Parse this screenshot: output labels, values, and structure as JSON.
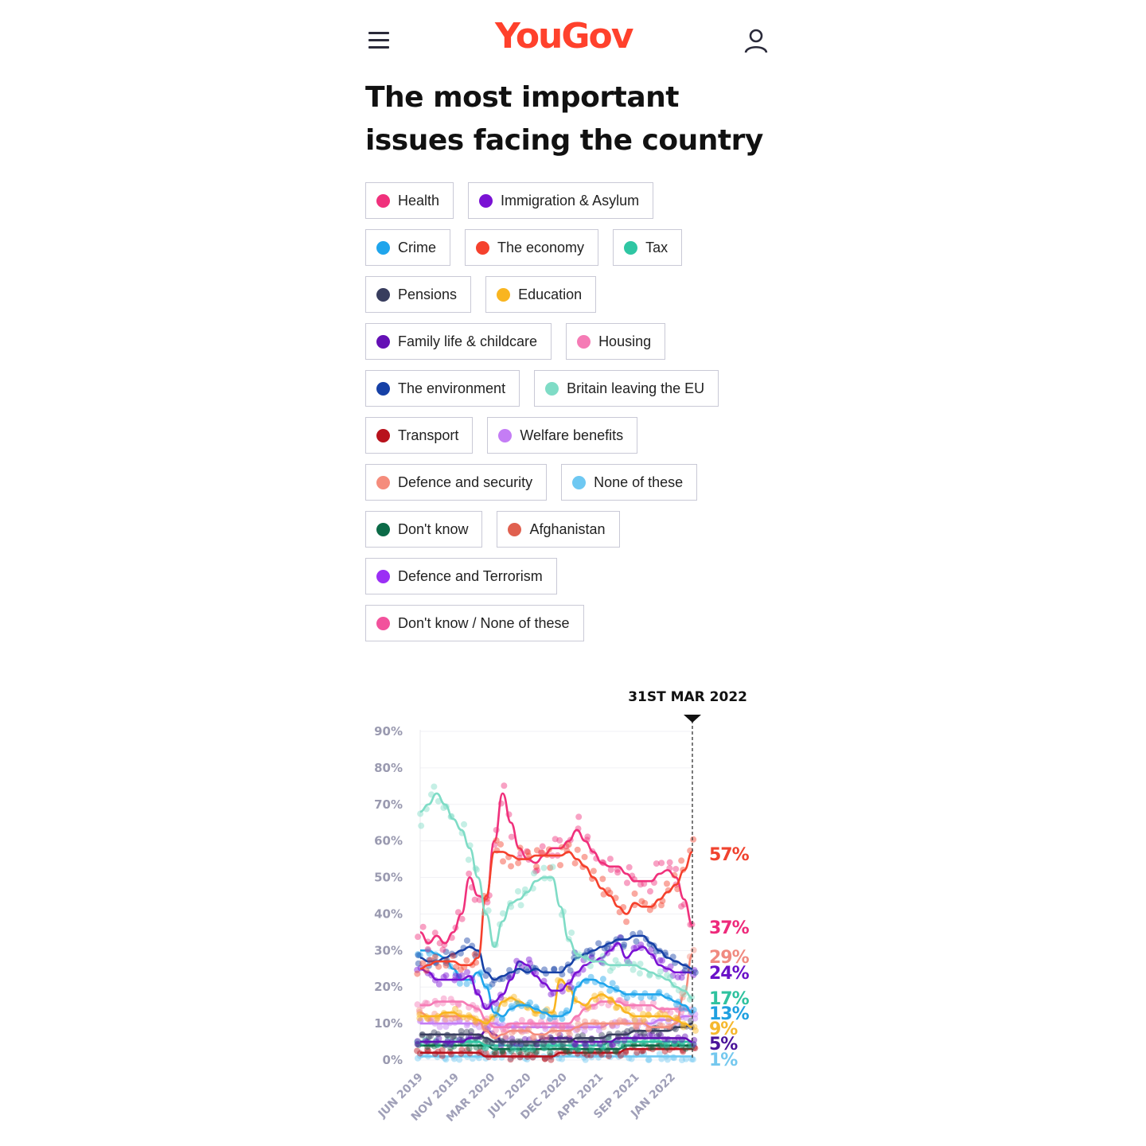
{
  "header": {
    "logo": "YouGov",
    "menu_icon": "hamburger-icon",
    "user_icon": "user-icon"
  },
  "title": "The most important issues facing the country",
  "legend": [
    {
      "label": "Health",
      "color": "#f0317c"
    },
    {
      "label": "Immigration & Asylum",
      "color": "#7a12d4"
    },
    {
      "label": "Crime",
      "color": "#1fa5ec"
    },
    {
      "label": "The economy",
      "color": "#f5412d"
    },
    {
      "label": "Tax",
      "color": "#2fc6a3"
    },
    {
      "label": "Pensions",
      "color": "#383d5e"
    },
    {
      "label": "Education",
      "color": "#f9b520"
    },
    {
      "label": "Family life & childcare",
      "color": "#6410b5"
    },
    {
      "label": "Housing",
      "color": "#f57bb5"
    },
    {
      "label": "The environment",
      "color": "#1640a6"
    },
    {
      "label": "Britain leaving the EU",
      "color": "#7fdcc6"
    },
    {
      "label": "Transport",
      "color": "#b8121c"
    },
    {
      "label": "Welfare benefits",
      "color": "#c47df5"
    },
    {
      "label": "Defence and security",
      "color": "#f58c7c"
    },
    {
      "label": "None of these",
      "color": "#6ec8f2"
    },
    {
      "label": "Don't know",
      "color": "#0b6a47"
    },
    {
      "label": "Afghanistan",
      "color": "#e0604f"
    },
    {
      "label": "Defence and Terrorism",
      "color": "#9b2ff5"
    },
    {
      "label": "Don't know / None of these",
      "color": "#f2529c"
    }
  ],
  "chart_data": {
    "type": "line",
    "marker_label": "31ST MAR 2022",
    "y_ticks": [
      "0%",
      "10%",
      "20%",
      "30%",
      "40%",
      "50%",
      "60%",
      "70%",
      "80%",
      "90%"
    ],
    "ylim": [
      0,
      90
    ],
    "x_range": [
      "Jun 2019",
      "Mar 2022"
    ],
    "x_ticks": [
      "JUN 2019",
      "NOV 2019",
      "MAR 2020",
      "JUL 2020",
      "DEC 2020",
      "APR 2021",
      "SEP 2021",
      "JAN 2022"
    ],
    "x_step": "month",
    "grid": true,
    "series": [
      {
        "name": "Britain leaving the EU",
        "color": "#7fdcc6",
        "values": [
          68,
          70,
          73,
          70,
          66,
          63,
          58,
          50,
          40,
          31,
          38,
          43,
          44,
          46,
          49,
          50,
          50,
          42,
          33,
          29,
          28,
          27,
          27,
          26,
          26,
          26,
          26,
          25,
          24,
          23,
          22,
          20,
          19,
          17
        ]
      },
      {
        "name": "The economy",
        "color": "#f5412d",
        "values": [
          25,
          26,
          27,
          27,
          27,
          26,
          26,
          28,
          45,
          57,
          57,
          56,
          55,
          55,
          56,
          56,
          56,
          56,
          57,
          55,
          53,
          50,
          47,
          45,
          42,
          40,
          43,
          42,
          42,
          44,
          46,
          48,
          52,
          57
        ]
      },
      {
        "name": "Health",
        "color": "#f0317c",
        "values": [
          35,
          32,
          34,
          32,
          35,
          40,
          50,
          45,
          44,
          60,
          73,
          65,
          58,
          55,
          54,
          56,
          58,
          58,
          60,
          63,
          60,
          57,
          54,
          53,
          53,
          51,
          49,
          49,
          49,
          51,
          52,
          50,
          44,
          37
        ]
      },
      {
        "name": "The environment",
        "color": "#1640a6",
        "values": [
          28,
          27,
          27,
          28,
          29,
          30,
          31,
          30,
          24,
          22,
          23,
          24,
          25,
          24,
          25,
          24,
          24,
          24,
          26,
          28,
          29,
          30,
          31,
          32,
          33,
          33,
          34,
          34,
          32,
          30,
          28,
          27,
          26,
          25
        ]
      },
      {
        "name": "Immigration & Asylum",
        "color": "#7a12d4",
        "values": [
          25,
          24,
          22,
          22,
          22,
          22,
          23,
          18,
          14,
          16,
          18,
          22,
          27,
          26,
          23,
          21,
          19,
          19,
          21,
          24,
          26,
          27,
          28,
          30,
          32,
          28,
          30,
          31,
          29,
          26,
          25,
          24,
          24,
          24
        ]
      },
      {
        "name": "Crime",
        "color": "#1fa5ec",
        "values": [
          30,
          30,
          29,
          28,
          25,
          22,
          22,
          24,
          20,
          13,
          12,
          14,
          15,
          15,
          14,
          13,
          12,
          12,
          13,
          20,
          22,
          22,
          21,
          20,
          19,
          18,
          18,
          18,
          18,
          18,
          17,
          16,
          15,
          13
        ]
      },
      {
        "name": "Education",
        "color": "#f9b520",
        "values": [
          12,
          12,
          12,
          13,
          13,
          12,
          12,
          11,
          10,
          12,
          16,
          17,
          16,
          15,
          13,
          13,
          13,
          22,
          20,
          16,
          15,
          17,
          18,
          17,
          15,
          13,
          12,
          12,
          12,
          12,
          12,
          11,
          10,
          9
        ]
      },
      {
        "name": "Housing",
        "color": "#f57bb5",
        "values": [
          15,
          15,
          16,
          16,
          16,
          16,
          15,
          14,
          11,
          9,
          9,
          10,
          10,
          10,
          10,
          10,
          10,
          10,
          10,
          12,
          14,
          15,
          16,
          16,
          16,
          15,
          15,
          15,
          15,
          14,
          14,
          14,
          14,
          13
        ]
      },
      {
        "name": "Defence and security",
        "color": "#f58c7c",
        "values": [
          13,
          12,
          12,
          12,
          12,
          12,
          12,
          11,
          8,
          6,
          7,
          8,
          8,
          8,
          7,
          7,
          8,
          8,
          8,
          9,
          10,
          10,
          10,
          10,
          10,
          10,
          10,
          10,
          9,
          9,
          9,
          10,
          18,
          29
        ]
      },
      {
        "name": "Welfare benefits",
        "color": "#c47df5",
        "values": [
          10,
          10,
          10,
          10,
          10,
          10,
          10,
          10,
          10,
          10,
          9,
          9,
          9,
          9,
          9,
          9,
          9,
          9,
          9,
          9,
          9,
          9,
          9,
          10,
          10,
          10,
          10,
          10,
          10,
          11,
          11,
          11,
          12,
          12
        ]
      },
      {
        "name": "Pensions",
        "color": "#383d5e",
        "values": [
          7,
          7,
          7,
          7,
          7,
          7,
          7,
          7,
          6,
          5,
          5,
          5,
          5,
          5,
          5,
          5,
          5,
          5,
          5,
          6,
          6,
          6,
          6,
          7,
          7,
          7,
          8,
          8,
          8,
          8,
          8,
          9,
          9,
          10
        ]
      },
      {
        "name": "Family life & childcare",
        "color": "#6410b5",
        "values": [
          5,
          5,
          5,
          5,
          5,
          5,
          6,
          6,
          8,
          7,
          5,
          5,
          5,
          5,
          5,
          6,
          6,
          6,
          6,
          5,
          5,
          5,
          5,
          5,
          6,
          6,
          6,
          6,
          6,
          6,
          6,
          6,
          6,
          5
        ]
      },
      {
        "name": "Tax",
        "color": "#2fc6a3",
        "values": [
          5,
          5,
          5,
          5,
          5,
          5,
          5,
          5,
          4,
          4,
          4,
          4,
          4,
          4,
          4,
          4,
          4,
          4,
          4,
          4,
          4,
          4,
          4,
          5,
          5,
          5,
          5,
          5,
          5,
          5,
          5,
          5,
          5,
          5
        ]
      },
      {
        "name": "Don't know",
        "color": "#0b6a47",
        "values": [
          4,
          4,
          4,
          4,
          4,
          4,
          4,
          4,
          4,
          3,
          3,
          3,
          3,
          3,
          3,
          3,
          3,
          3,
          3,
          3,
          3,
          3,
          3,
          3,
          3,
          4,
          4,
          4,
          4,
          4,
          4,
          4,
          4,
          4
        ]
      },
      {
        "name": "Transport",
        "color": "#b8121c",
        "values": [
          2,
          2,
          2,
          2,
          2,
          2,
          2,
          2,
          1,
          1,
          1,
          1,
          1,
          1,
          1,
          1,
          1,
          2,
          2,
          2,
          2,
          2,
          2,
          2,
          2,
          3,
          3,
          3,
          3,
          3,
          3,
          3,
          3,
          3
        ]
      },
      {
        "name": "None of these",
        "color": "#6ec8f2",
        "values": [
          1,
          1,
          1,
          1,
          1,
          1,
          1,
          1,
          1,
          1,
          1,
          1,
          1,
          1,
          1,
          1,
          1,
          1,
          1,
          1,
          1,
          1,
          1,
          1,
          1,
          1,
          1,
          1,
          1,
          1,
          1,
          1,
          1,
          1
        ]
      }
    ],
    "end_labels": [
      {
        "text": "57%",
        "color": "#f0432f"
      },
      {
        "text": "37%",
        "color": "#ee2a7b"
      },
      {
        "text": "29%",
        "color": "#f08a80"
      },
      {
        "text": "24%",
        "color": "#6a12c8"
      },
      {
        "text": "17%",
        "color": "#2fc29f"
      },
      {
        "text": "13%",
        "color": "#1fa0e0"
      },
      {
        "text": "9%",
        "color": "#f5b82e"
      },
      {
        "text": "5%",
        "color": "#4a1499"
      },
      {
        "text": "1%",
        "color": "#74c8ee"
      }
    ]
  }
}
